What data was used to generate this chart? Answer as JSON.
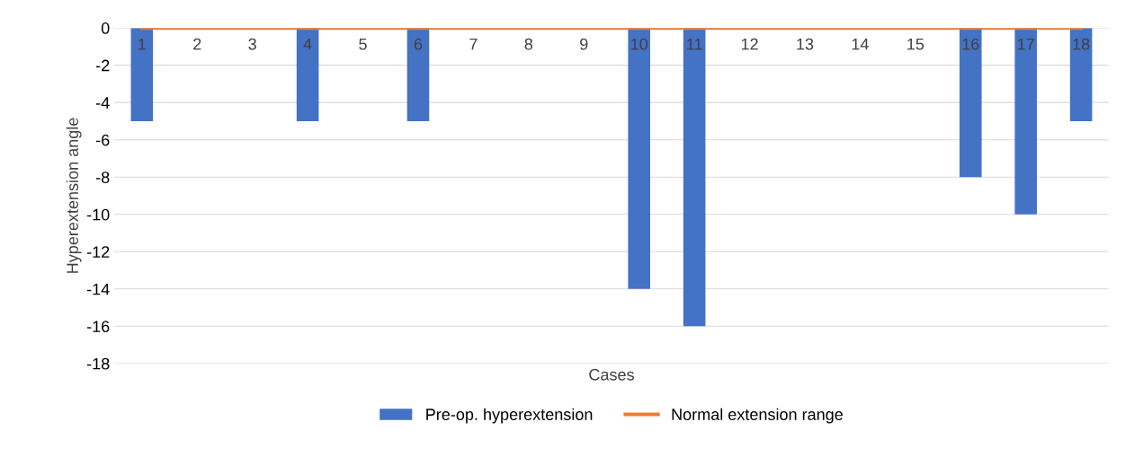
{
  "chart_data": {
    "type": "bar",
    "categories": [
      "1",
      "2",
      "3",
      "4",
      "5",
      "6",
      "7",
      "8",
      "9",
      "10",
      "11",
      "12",
      "13",
      "14",
      "15",
      "16",
      "17",
      "18"
    ],
    "series": [
      {
        "name": "Pre-op. hyperextension",
        "color": "#4472c4",
        "values": [
          -5,
          0,
          0,
          -5,
          0,
          -5,
          0,
          0,
          0,
          -14,
          -16,
          0,
          0,
          0,
          0,
          -8,
          -10,
          -5
        ]
      },
      {
        "name": "Normal extension range",
        "type": "line",
        "color": "#ed7d31",
        "values": [
          0,
          0,
          0,
          0,
          0,
          0,
          0,
          0,
          0,
          0,
          0,
          0,
          0,
          0,
          0,
          0,
          0,
          0
        ]
      }
    ],
    "xlabel": "Cases",
    "ylabel": "Hyperextension angle",
    "ylim": [
      -18,
      0
    ],
    "yticks": [
      -18,
      -16,
      -14,
      -12,
      -10,
      -8,
      -6,
      -4,
      -2,
      0
    ],
    "grid": "y",
    "legend": "bottom"
  }
}
